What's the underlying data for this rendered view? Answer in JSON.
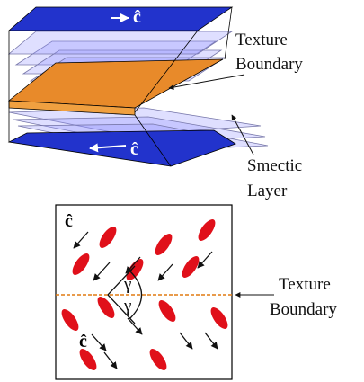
{
  "top_figure": {
    "director_top": "ĉ",
    "director_bottom": "ĉ",
    "texture_boundary": [
      "Texture",
      "Boundary"
    ],
    "smectic_layer": [
      "Smectic",
      "Layer"
    ]
  },
  "bottom_figure": {
    "director_labels": [
      "ĉ",
      "ĉ"
    ],
    "angle_labels": [
      "γ",
      "γ"
    ],
    "texture_boundary": [
      "Texture",
      "Boundary"
    ]
  }
}
